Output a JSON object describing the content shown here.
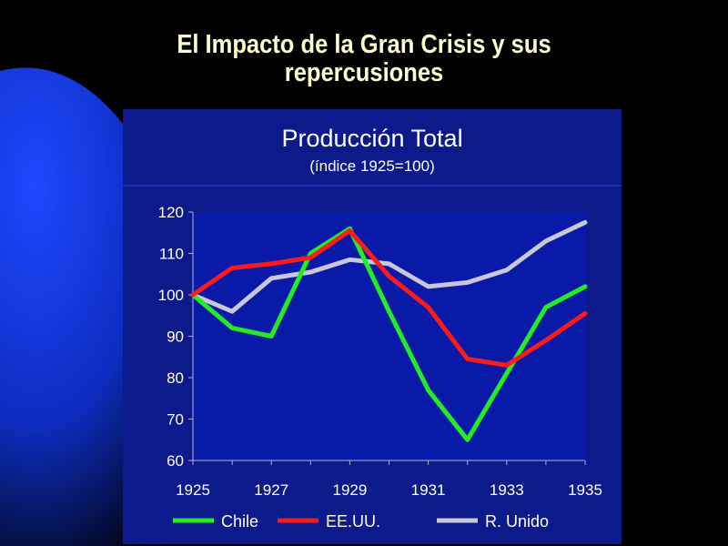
{
  "slide": {
    "title_line1": "El Impacto de la Gran Crisis y sus",
    "title_line2": "repercusiones",
    "colors": {
      "background": "#000000",
      "accent_curve": "#1a3de0",
      "title_text": "#ffffcc",
      "chart_panel": "#0c1a8c",
      "plot_area": "#0a1aa8"
    }
  },
  "chart_data": {
    "type": "line",
    "title": "Producción Total",
    "subtitle": "(índice 1925=100)",
    "xlabel": "",
    "ylabel": "",
    "x": [
      1925,
      1926,
      1927,
      1928,
      1929,
      1930,
      1931,
      1932,
      1933,
      1934,
      1935
    ],
    "xticks": [
      "1925",
      "1927",
      "1929",
      "1931",
      "1933",
      "1935"
    ],
    "yticks": [
      "60",
      "70",
      "80",
      "90",
      "100",
      "110",
      "120"
    ],
    "xlim": [
      1925,
      1935
    ],
    "ylim": [
      60,
      120
    ],
    "grid": false,
    "legend_position": "bottom",
    "series": [
      {
        "name": "Chile",
        "color": "#22ee22",
        "values": [
          100,
          92,
          90,
          110,
          116,
          96,
          77,
          65,
          81,
          97,
          102
        ]
      },
      {
        "name": "EE.UU.",
        "color": "#ff1a1a",
        "values": [
          100,
          106.5,
          107.5,
          109,
          115.5,
          104.5,
          97,
          84.5,
          83,
          89,
          95.5
        ]
      },
      {
        "name": "R. Unido",
        "color": "#c8c8d8",
        "values": [
          100,
          96,
          104,
          105.5,
          108.5,
          107.5,
          102,
          103,
          106,
          113,
          117.5
        ]
      }
    ]
  }
}
